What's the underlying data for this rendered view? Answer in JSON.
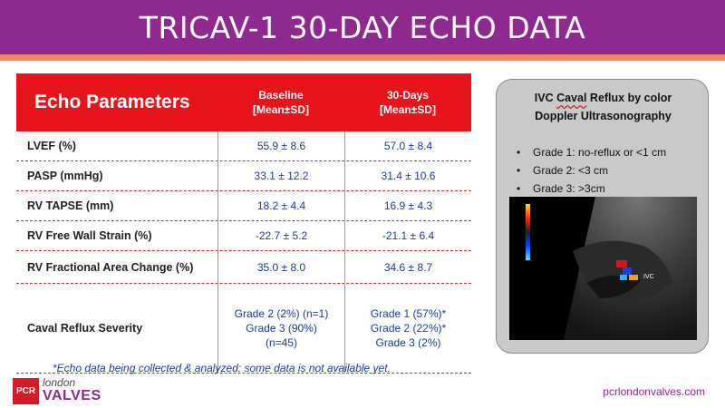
{
  "slide": {
    "title": "TRICAV-1 30-DAY ECHO DATA",
    "brand_color": "#8e2a8f",
    "accent_color": "#f0856a",
    "table_header_color": "#e8141c"
  },
  "table": {
    "headers": {
      "param": "Echo Parameters",
      "baseline_line1": "Baseline",
      "baseline_line2": "[Mean±SD]",
      "thirty_line1": "30-Days",
      "thirty_line2": "[Mean±SD]"
    },
    "rows": [
      {
        "label": "LVEF (%)",
        "baseline": [
          "55.9 ± 8.6"
        ],
        "thirty": [
          "57.0 ± 8.4"
        ]
      },
      {
        "label": "PASP (mmHg)",
        "baseline": [
          "33.1 ±  12.2"
        ],
        "thirty": [
          "31.4 ± 10.6"
        ]
      },
      {
        "label": "RV TAPSE (mm)",
        "baseline": [
          "18.2 ± 4.4"
        ],
        "thirty": [
          "16.9 ± 4.3"
        ]
      },
      {
        "label": "RV Free Wall Strain (%)",
        "baseline": [
          "-22.7 ± 5.2"
        ],
        "thirty": [
          "-21.1 ± 6.4"
        ]
      },
      {
        "label": "RV Fractional Area Change (%)",
        "baseline": [
          "35.0 ± 8.0"
        ],
        "thirty": [
          "34.6 ± 8.7"
        ]
      },
      {
        "label": "Caval Reflux Severity",
        "baseline": [
          "Grade 2 (2%) (n=1)",
          "Grade 3 (90%)",
          "(n=45)"
        ],
        "thirty": [
          "Grade 1 (57%)*",
          "Grade 2 (22%)*",
          "Grade 3 (2%)"
        ]
      }
    ]
  },
  "footnote": "*Echo data being collected & analyzed: some data is not available yet.",
  "ivc_panel": {
    "title_pre": "IVC ",
    "title_caval": "Caval",
    "title_post": " Reflux by color",
    "title_line2": "Doppler Ultrasonography",
    "bullets": [
      "Grade 1: no-reflux or <1 cm",
      "Grade 2: <3 cm",
      "Grade 3: >3cm"
    ],
    "image_label": "IVC"
  },
  "logo": {
    "mark": "PCR",
    "line1": "london",
    "line2": "VALVES"
  },
  "website": "pcrlondonvalves.com"
}
